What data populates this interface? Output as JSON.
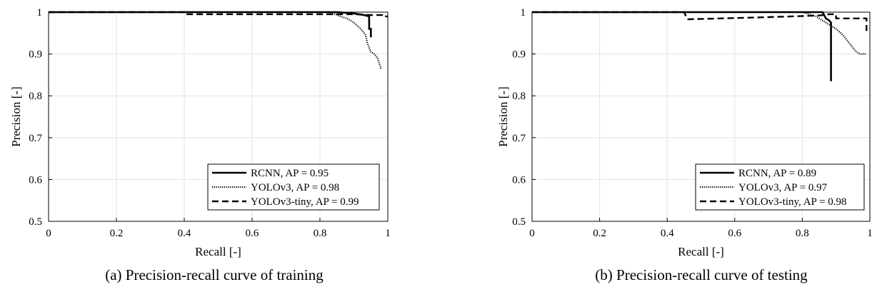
{
  "chart_data": [
    {
      "type": "line",
      "caption": "(a) Precision-recall curve of training",
      "xlabel": "Recall [-]",
      "ylabel": "Precision [-]",
      "xlim": [
        0,
        1
      ],
      "ylim": [
        0.5,
        1
      ],
      "xticks": [
        0,
        0.2,
        0.4,
        0.6,
        0.8,
        1
      ],
      "xtick_labels": [
        "0",
        "0.2",
        "0.4",
        "0.6",
        "0.8",
        "1"
      ],
      "yticks": [
        0.5,
        0.6,
        0.7,
        0.8,
        0.9,
        1
      ],
      "ytick_labels": [
        "0.5",
        "0.6",
        "0.7",
        "0.8",
        "0.9",
        "1"
      ],
      "grid": true,
      "legend_position": "bottom-right",
      "series": [
        {
          "name": "RCNN",
          "label": "RCNN, AP = 0.95",
          "style": "solid",
          "x": [
            0,
            0.85,
            0.9,
            0.93,
            0.945,
            0.945,
            0.95,
            0.95
          ],
          "y": [
            1,
            1,
            0.997,
            0.993,
            0.99,
            0.96,
            0.96,
            0.94
          ]
        },
        {
          "name": "YOLOv3",
          "label": "YOLOv3, AP = 0.98",
          "style": "dotted",
          "x": [
            0,
            0.83,
            0.86,
            0.88,
            0.9,
            0.92,
            0.935,
            0.94,
            0.945,
            0.95,
            0.96,
            0.97,
            0.98
          ],
          "y": [
            1,
            1,
            0.99,
            0.985,
            0.975,
            0.96,
            0.945,
            0.925,
            0.915,
            0.905,
            0.9,
            0.89,
            0.865
          ]
        },
        {
          "name": "YOLOv3-tiny",
          "label": "YOLOv3-tiny, AP = 0.99",
          "style": "dashed",
          "x": [
            0,
            0.4,
            0.4,
            0.9,
            0.95,
            0.99,
            0.99,
            1
          ],
          "y": [
            1,
            1,
            0.995,
            0.995,
            0.993,
            0.993,
            0.99,
            0.99
          ]
        }
      ]
    },
    {
      "type": "line",
      "caption": "(b) Precision-recall curve of testing",
      "xlabel": "Recall [-]",
      "ylabel": "Precision [-]",
      "xlim": [
        0,
        1
      ],
      "ylim": [
        0.5,
        1
      ],
      "xticks": [
        0,
        0.2,
        0.4,
        0.6,
        0.8,
        1
      ],
      "xtick_labels": [
        "0",
        "0.2",
        "0.4",
        "0.6",
        "0.8",
        "1"
      ],
      "yticks": [
        0.5,
        0.6,
        0.7,
        0.8,
        0.9,
        1
      ],
      "ytick_labels": [
        "0.5",
        "0.6",
        "0.7",
        "0.8",
        "0.9",
        "1"
      ],
      "grid": true,
      "legend_position": "bottom-right",
      "series": [
        {
          "name": "RCNN",
          "label": "RCNN, AP = 0.89",
          "style": "solid",
          "x": [
            0,
            0.86,
            0.87,
            0.88,
            0.885,
            0.885
          ],
          "y": [
            1,
            1,
            0.985,
            0.98,
            0.975,
            0.835
          ]
        },
        {
          "name": "YOLOv3",
          "label": "YOLOv3, AP = 0.97",
          "style": "dotted",
          "x": [
            0,
            0.8,
            0.84,
            0.87,
            0.9,
            0.92,
            0.94,
            0.96,
            0.97,
            0.99
          ],
          "y": [
            1,
            1,
            0.99,
            0.975,
            0.96,
            0.945,
            0.925,
            0.905,
            0.9,
            0.9
          ]
        },
        {
          "name": "YOLOv3-tiny",
          "label": "YOLOv3-tiny, AP = 0.98",
          "style": "dashed",
          "x": [
            0,
            0.45,
            0.46,
            0.7,
            0.85,
            0.88,
            0.9,
            0.9,
            0.99,
            0.99
          ],
          "y": [
            1,
            1,
            0.983,
            0.988,
            0.992,
            0.995,
            0.995,
            0.985,
            0.985,
            0.955
          ]
        }
      ]
    }
  ]
}
